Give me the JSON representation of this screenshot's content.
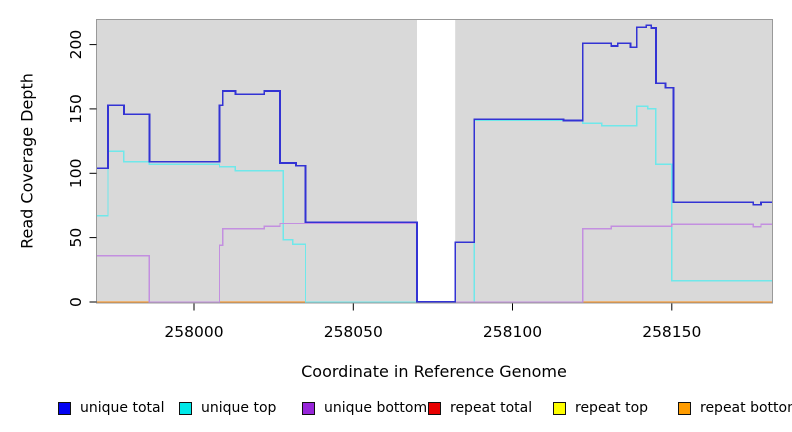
{
  "chart_data": {
    "type": "line",
    "subtype": "step",
    "title": "",
    "xlabel": "Coordinate in Reference Genome",
    "ylabel": "Read Coverage Depth",
    "xlim": [
      257969.4,
      258181.6
    ],
    "ylim": [
      0,
      219.5
    ],
    "x_ticks": [
      258000,
      258050,
      258100,
      258150
    ],
    "y_ticks": [
      0,
      50,
      100,
      150,
      200
    ],
    "grid": false,
    "panel_bg": "#d9d9d9",
    "panel_border": "#999999",
    "masked_region": {
      "x0": 258070,
      "x1": 258082,
      "color": "#ffffff"
    },
    "legend_position": "bottom",
    "draw_order": [
      3,
      4,
      5,
      1,
      2,
      0
    ],
    "series": [
      {
        "name": "unique total",
        "color": "#3333d4",
        "legend_color": "#0202f2",
        "width": 1.7,
        "points": [
          [
            257969,
            104
          ],
          [
            257973,
            153
          ],
          [
            257978,
            146
          ],
          [
            257986,
            109
          ],
          [
            258008,
            153
          ],
          [
            258009,
            164
          ],
          [
            258013,
            161.5
          ],
          [
            258022,
            164
          ],
          [
            258027,
            108
          ],
          [
            258032,
            106
          ],
          [
            258035,
            62
          ],
          [
            258070,
            0
          ],
          [
            258082,
            46.5
          ],
          [
            258088,
            142
          ],
          [
            258116,
            141
          ],
          [
            258122,
            201
          ],
          [
            258131,
            199
          ],
          [
            258133,
            201
          ],
          [
            258137,
            198
          ],
          [
            258139,
            213.5
          ],
          [
            258142,
            215
          ],
          [
            258143.5,
            213
          ],
          [
            258145,
            170
          ],
          [
            258148,
            166.5
          ],
          [
            258150.5,
            77.5
          ],
          [
            258175.5,
            75.5
          ],
          [
            258178,
            77.5
          ]
        ]
      },
      {
        "name": "unique top",
        "color": "#6fe8ea",
        "legend_color": "#00e8e8",
        "width": 1.4,
        "points": [
          [
            257969,
            67
          ],
          [
            257973,
            117
          ],
          [
            257978,
            109
          ],
          [
            257986,
            107
          ],
          [
            258008,
            105
          ],
          [
            258013,
            102
          ],
          [
            258028,
            48.5
          ],
          [
            258031,
            45
          ],
          [
            258035,
            0
          ],
          [
            258088,
            141
          ],
          [
            258122,
            139
          ],
          [
            258128,
            137
          ],
          [
            258139,
            152
          ],
          [
            258142.5,
            150
          ],
          [
            258145,
            107
          ],
          [
            258150,
            16.5
          ]
        ]
      },
      {
        "name": "unique bottom",
        "color": "#c38fe0",
        "legend_color": "#9726d9",
        "width": 1.4,
        "points": [
          [
            257969,
            36
          ],
          [
            257986,
            0
          ],
          [
            258008,
            44
          ],
          [
            258009,
            57
          ],
          [
            258022,
            59
          ],
          [
            258027,
            61
          ],
          [
            258070,
            0
          ],
          [
            258122,
            57
          ],
          [
            258131,
            59
          ],
          [
            258150,
            60.5
          ],
          [
            258175.5,
            58.5
          ],
          [
            258178,
            60.5
          ]
        ]
      },
      {
        "name": "repeat total",
        "color": "#dd0000",
        "legend_color": "#e80000",
        "width": 1.4,
        "points": [
          [
            257969,
            0
          ]
        ]
      },
      {
        "name": "repeat top",
        "color": "#eeee00",
        "legend_color": "#fdfd00",
        "width": 1.4,
        "points": [
          [
            257969,
            0
          ]
        ]
      },
      {
        "name": "repeat bottom",
        "color": "#ff9015",
        "legend_color": "#ff9c00",
        "width": 1.4,
        "points": [
          [
            257969,
            0
          ]
        ]
      }
    ]
  }
}
